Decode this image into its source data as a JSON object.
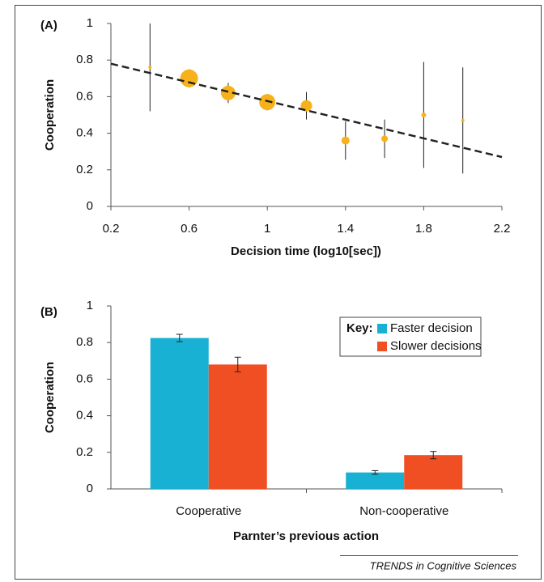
{
  "chart_data": [
    {
      "type": "scatter",
      "panel_label": "(A)",
      "x_label": "Decision time (log10[sec])",
      "y_label": "Cooperation",
      "xlim": [
        0.2,
        2.2
      ],
      "xticks": [
        0.2,
        0.6,
        1,
        1.4,
        1.8,
        2.2
      ],
      "ylim": [
        0,
        1
      ],
      "yticks": [
        0,
        0.2,
        0.4,
        0.6,
        0.8,
        1
      ],
      "series": [
        {
          "color": "#f7b21b",
          "x": [
            0.4,
            0.6,
            0.8,
            1.0,
            1.2,
            1.4,
            1.6,
            1.8,
            2.0
          ],
          "values": [
            0.76,
            0.7,
            0.62,
            0.57,
            0.55,
            0.36,
            0.37,
            0.5,
            0.47
          ],
          "errors": [
            0.24,
            0.05,
            0.055,
            0.045,
            0.075,
            0.105,
            0.105,
            0.29,
            0.29
          ],
          "sizes": [
            2,
            11,
            9,
            10,
            7,
            5,
            4,
            3,
            2
          ]
        }
      ],
      "trendline": {
        "x": [
          0.2,
          2.2
        ],
        "y": [
          0.78,
          0.27
        ],
        "color": "#222222"
      }
    },
    {
      "type": "bar",
      "panel_label": "(B)",
      "x_label": "Parnter’s previous action",
      "y_label": "Cooperation",
      "categories": [
        "Cooperative",
        "Non-cooperative"
      ],
      "ylim": [
        0,
        1
      ],
      "yticks": [
        0,
        0.2,
        0.4,
        0.6,
        0.8,
        1
      ],
      "legend_title": "Key:",
      "legend": "top-right",
      "series": [
        {
          "name": "Faster decision",
          "color": "#19b1d3",
          "values": [
            0.825,
            0.09
          ],
          "errors": [
            0.02,
            0.01
          ]
        },
        {
          "name": "Slower decisions",
          "color": "#f04f23",
          "values": [
            0.68,
            0.185
          ],
          "errors": [
            0.04,
            0.02
          ]
        }
      ]
    }
  ],
  "footer": "TRENDS in Cognitive Sciences"
}
